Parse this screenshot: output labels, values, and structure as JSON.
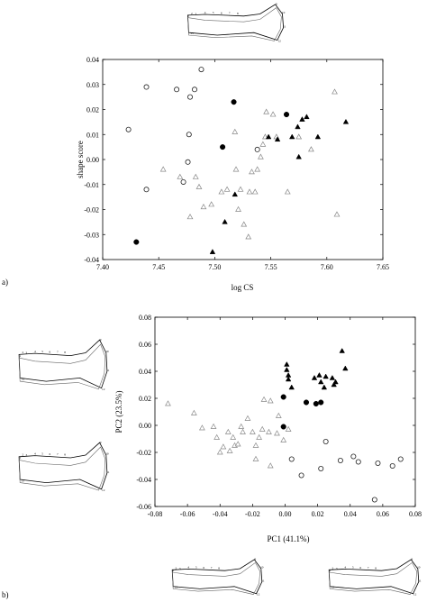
{
  "chart_data": [
    {
      "type": "scatter",
      "panel_label": "a)",
      "xlabel": "log CS",
      "ylabel": "shape score",
      "xlim": [
        7.4,
        7.65
      ],
      "ylim": [
        -0.04,
        0.04
      ],
      "xticks": [
        "7.40",
        "7.45",
        "7.50",
        "7.55",
        "7.60",
        "7.65"
      ],
      "yticks": [
        "-0.04",
        "-0.03",
        "-0.02",
        "-0.01",
        "0.00",
        "0.01",
        "0.02",
        "0.03",
        "0.04"
      ],
      "series": [
        {
          "marker": "open-circle",
          "points": [
            [
              7.423,
              0.012
            ],
            [
              7.439,
              0.029
            ],
            [
              7.466,
              0.028
            ],
            [
              7.477,
              0.01
            ],
            [
              7.478,
              0.025
            ],
            [
              7.482,
              0.028
            ],
            [
              7.488,
              0.036
            ],
            [
              7.538,
              0.004
            ],
            [
              7.476,
              -0.001
            ],
            [
              7.472,
              -0.009
            ],
            [
              7.439,
              -0.012
            ]
          ]
        },
        {
          "marker": "filled-circle",
          "points": [
            [
              7.43,
              -0.033
            ],
            [
              7.507,
              0.005
            ],
            [
              7.517,
              0.023
            ],
            [
              7.564,
              0.018
            ]
          ]
        },
        {
          "marker": "open-triangle",
          "points": [
            [
              7.454,
              -0.004
            ],
            [
              7.469,
              -0.007
            ],
            [
              7.478,
              -0.023
            ],
            [
              7.483,
              -0.007
            ],
            [
              7.486,
              -0.011
            ],
            [
              7.49,
              -0.019
            ],
            [
              7.497,
              -0.018
            ],
            [
              7.506,
              -0.013
            ],
            [
              7.511,
              -0.012
            ],
            [
              7.518,
              0.011
            ],
            [
              7.519,
              -0.004
            ],
            [
              7.521,
              -0.02
            ],
            [
              7.523,
              -0.012
            ],
            [
              7.526,
              -0.026
            ],
            [
              7.53,
              -0.031
            ],
            [
              7.531,
              -0.013
            ],
            [
              7.533,
              -0.005
            ],
            [
              7.536,
              -0.013
            ],
            [
              7.538,
              -0.004
            ],
            [
              7.541,
              0.001
            ],
            [
              7.543,
              0.006
            ],
            [
              7.545,
              0.009
            ],
            [
              7.546,
              0.019
            ],
            [
              7.552,
              0.018
            ],
            [
              7.555,
              0.009
            ],
            [
              7.565,
              -0.013
            ],
            [
              7.575,
              0.009
            ],
            [
              7.586,
              0.004
            ],
            [
              7.607,
              0.027
            ],
            [
              7.609,
              -0.022
            ]
          ]
        },
        {
          "marker": "filled-triangle",
          "points": [
            [
              7.498,
              -0.037
            ],
            [
              7.509,
              -0.025
            ],
            [
              7.518,
              -0.014
            ],
            [
              7.548,
              0.009
            ],
            [
              7.556,
              0.008
            ],
            [
              7.569,
              0.009
            ],
            [
              7.574,
              0.013
            ],
            [
              7.575,
              0.001
            ],
            [
              7.578,
              0.016
            ],
            [
              7.582,
              0.017
            ],
            [
              7.592,
              0.009
            ],
            [
              7.617,
              0.015
            ]
          ]
        }
      ]
    },
    {
      "type": "scatter",
      "panel_label": "b)",
      "xlabel": "PC1 (41.1%)",
      "ylabel": "PC2 (23.5%)",
      "xlim": [
        -0.08,
        0.08
      ],
      "ylim": [
        -0.06,
        0.08
      ],
      "xticks": [
        "-0.08",
        "-0.06",
        "-0.04",
        "-0.02",
        "0.00",
        "0.02",
        "0.04",
        "0.06",
        "0.08"
      ],
      "yticks": [
        "-0.06",
        "-0.04",
        "-0.02",
        "0.00",
        "0.02",
        "0.04",
        "0.06",
        "0.08"
      ],
      "series": [
        {
          "marker": "open-circle",
          "points": [
            [
              0.004,
              -0.025
            ],
            [
              0.01,
              -0.037
            ],
            [
              0.022,
              -0.032
            ],
            [
              0.025,
              -0.012
            ],
            [
              0.034,
              -0.026
            ],
            [
              0.042,
              -0.023
            ],
            [
              0.045,
              -0.027
            ],
            [
              0.057,
              -0.028
            ],
            [
              0.066,
              -0.03
            ],
            [
              0.071,
              -0.025
            ],
            [
              0.055,
              -0.055
            ]
          ]
        },
        {
          "marker": "filled-circle",
          "points": [
            [
              -0.001,
              0.021
            ],
            [
              -0.001,
              -0.001
            ],
            [
              0.013,
              0.017
            ],
            [
              0.019,
              0.016
            ],
            [
              0.022,
              0.017
            ]
          ]
        },
        {
          "marker": "open-triangle",
          "points": [
            [
              -0.072,
              0.016
            ],
            [
              -0.056,
              0.009
            ],
            [
              -0.051,
              -0.002
            ],
            [
              -0.044,
              -0.001
            ],
            [
              -0.042,
              -0.009
            ],
            [
              -0.04,
              -0.02
            ],
            [
              -0.038,
              -0.016
            ],
            [
              -0.035,
              -0.005
            ],
            [
              -0.034,
              -0.019
            ],
            [
              -0.032,
              -0.009
            ],
            [
              -0.031,
              -0.015
            ],
            [
              -0.029,
              -0.014
            ],
            [
              -0.027,
              -0.001
            ],
            [
              -0.026,
              -0.005
            ],
            [
              -0.023,
              0.005
            ],
            [
              -0.02,
              -0.005
            ],
            [
              -0.018,
              -0.015
            ],
            [
              -0.016,
              -0.009
            ],
            [
              -0.014,
              -0.003
            ],
            [
              -0.013,
              0.019
            ],
            [
              -0.01,
              -0.005
            ],
            [
              -0.009,
              0.018
            ],
            [
              -0.005,
              -0.006
            ],
            [
              -0.004,
              0.007
            ],
            [
              -0.001,
              -0.011
            ],
            [
              0.002,
              -0.003
            ],
            [
              -0.009,
              -0.03
            ],
            [
              -0.018,
              -0.025
            ]
          ]
        },
        {
          "marker": "filled-triangle",
          "points": [
            [
              0.001,
              0.045
            ],
            [
              0.001,
              0.041
            ],
            [
              0.002,
              0.037
            ],
            [
              0.002,
              0.034
            ],
            [
              0.004,
              0.028
            ],
            [
              0.018,
              0.035
            ],
            [
              0.021,
              0.037
            ],
            [
              0.022,
              0.032
            ],
            [
              0.024,
              0.028
            ],
            [
              0.025,
              0.036
            ],
            [
              0.029,
              0.035
            ],
            [
              0.03,
              0.03
            ],
            [
              0.031,
              0.032
            ],
            [
              0.035,
              0.055
            ],
            [
              0.037,
              0.042
            ]
          ]
        }
      ]
    }
  ],
  "outlines": [
    {
      "id": "a-top",
      "labels": [
        "1",
        "2",
        "3",
        "4",
        "5",
        "6",
        "7",
        "8",
        "9",
        "10",
        "11",
        "12",
        "13"
      ]
    },
    {
      "id": "b-left-upper",
      "labels": [
        "1",
        "2",
        "3",
        "4",
        "5",
        "6",
        "7",
        "8",
        "9",
        "10",
        "11",
        "12",
        "13"
      ]
    },
    {
      "id": "b-left-lower",
      "labels": [
        "1",
        "2",
        "3",
        "4",
        "5",
        "6",
        "7",
        "8",
        "9",
        "10",
        "11",
        "12",
        "13"
      ]
    },
    {
      "id": "b-bottom-left",
      "labels": [
        "1",
        "2",
        "3",
        "4",
        "5",
        "6",
        "7",
        "8",
        "9",
        "10",
        "11",
        "12",
        "13"
      ]
    },
    {
      "id": "b-bottom-right",
      "labels": [
        "1",
        "2",
        "3",
        "4",
        "5",
        "6",
        "7",
        "8",
        "9",
        "10",
        "11",
        "12",
        "13"
      ]
    }
  ],
  "colors": {
    "ink": "#000000",
    "open_marker": "#222222",
    "open_triangle": "#888888"
  }
}
